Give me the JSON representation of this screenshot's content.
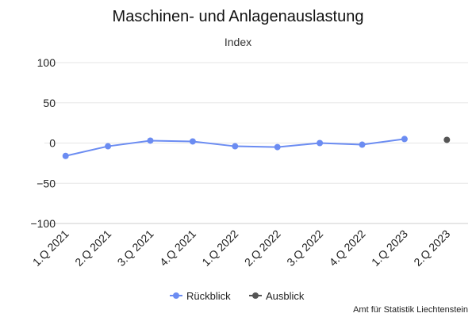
{
  "chart_data": {
    "type": "line",
    "title": "Maschinen- und Anlagenauslastung",
    "subtitle": "Index",
    "categories": [
      "1.Q 2021",
      "2.Q 2021",
      "3.Q 2021",
      "4.Q 2021",
      "1.Q 2022",
      "2.Q 2022",
      "3.Q 2022",
      "4.Q 2022",
      "1.Q 2023",
      "2.Q 2023"
    ],
    "series": [
      {
        "name": "Rückblick",
        "color": "#6b8cf2",
        "values": [
          -16,
          -4,
          3,
          2,
          -4,
          -5,
          0,
          -2,
          5,
          null
        ]
      },
      {
        "name": "Ausblick",
        "color": "#555555",
        "values": [
          null,
          null,
          null,
          null,
          null,
          null,
          null,
          null,
          null,
          4
        ]
      }
    ],
    "ylim": [
      -100,
      100
    ],
    "yticks": [
      -100,
      -50,
      0,
      50,
      100
    ],
    "ytick_labels": [
      "−100",
      "−50",
      "0",
      "50",
      "100"
    ],
    "grid": true,
    "legend_position": "bottom-center",
    "credit": "Amt für Statistik Liechtenstein"
  }
}
